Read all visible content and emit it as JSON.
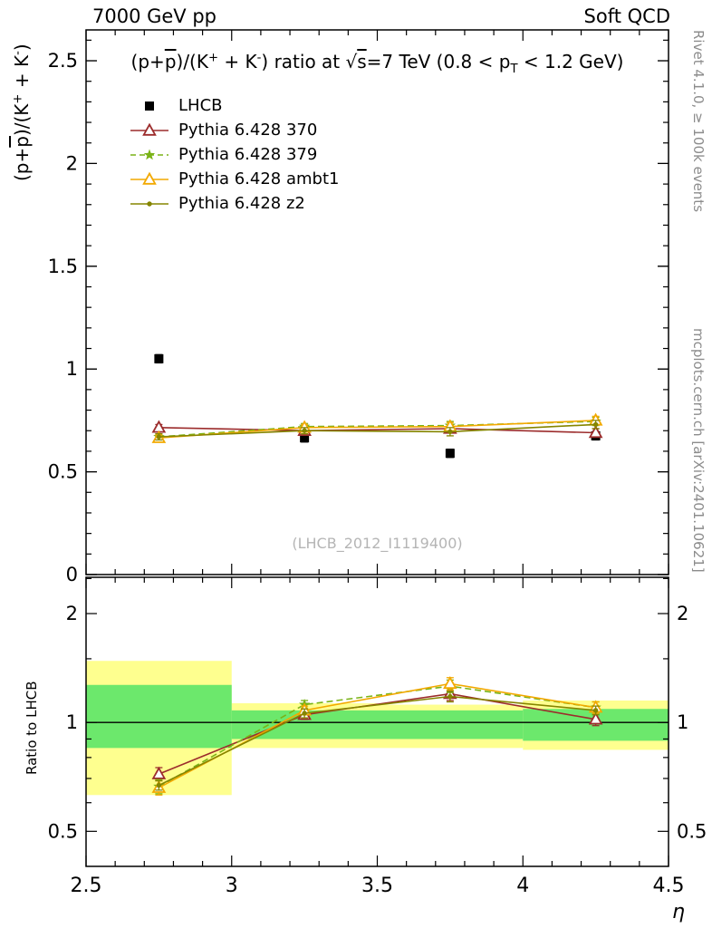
{
  "header": {
    "left": "7000 GeV pp",
    "right": "Soft QCD"
  },
  "title": {
    "s1": "(p+",
    "s2": "p",
    "s3": ")/(K",
    "s4": "+",
    "s5": " + K",
    "s6": "-",
    "s7": ") ratio at ",
    "s8": "√",
    "s9": "s",
    "s10": "=7 TeV (0.8 < p",
    "s11": "T",
    "s12": " < 1.2 GeV)"
  },
  "main_ylabel": {
    "s1": "(p+",
    "s2": "p",
    "s3": ")/(K",
    "s4": "+",
    "s5": " + K",
    "s6": "-",
    "s7": ")"
  },
  "ratio_ylabel": "Ratio to LHCB",
  "xlabel": "η",
  "watermark": "(LHCB_2012_I1119400)",
  "side_notes": {
    "top": "Rivet 4.1.0, ≥ 100k events",
    "bottom": "mcplots.cern.ch [arXiv:2401.10621]"
  },
  "colors": {
    "band_yellow": "#feff8f",
    "band_green": "#6ce86c",
    "frame": "#000000",
    "watermark": "#b5b5b5",
    "side_note": "#8c8c8c"
  },
  "chart_data": [
    {
      "type": "line",
      "panel": "main",
      "x": [
        2.75,
        3.25,
        3.75,
        4.25
      ],
      "xlim": [
        2.5,
        4.5
      ],
      "ylim": [
        0,
        2.65
      ],
      "xticks": [
        2.5,
        3,
        3.5,
        4,
        4.5
      ],
      "xminor_step": 0.1,
      "yticks": [
        0,
        0.5,
        1,
        1.5,
        2,
        2.5
      ],
      "ytick_labels": [
        "0",
        "0.5",
        "1",
        "1.5",
        "2",
        "2.5"
      ],
      "yminor_step": 0.1,
      "show_xtick_labels": false,
      "series": [
        {
          "name": "LHCB",
          "marker": "square",
          "color": "#000000",
          "line": "none",
          "values": [
            1.05,
            0.665,
            0.59,
            0.675
          ],
          "err": [
            0.02,
            0.02,
            0.02,
            0.02
          ]
        },
        {
          "name": "Pythia 6.428 370",
          "marker": "triangle-open",
          "color": "#9c2c2c",
          "line": "solid",
          "values": [
            0.715,
            0.7,
            0.71,
            0.69
          ],
          "err": [
            0.015,
            0.015,
            0.02,
            0.02
          ]
        },
        {
          "name": "Pythia 6.428 379",
          "marker": "star",
          "color": "#7ab317",
          "line": "dashed",
          "values": [
            0.67,
            0.72,
            0.725,
            0.745
          ],
          "err": [
            0.015,
            0.015,
            0.02,
            0.02
          ]
        },
        {
          "name": "Pythia 6.428 ambt1",
          "marker": "triangle-open",
          "color": "#f2a900",
          "line": "solid",
          "values": [
            0.665,
            0.715,
            0.72,
            0.75
          ],
          "err": [
            0.015,
            0.015,
            0.02,
            0.02
          ]
        },
        {
          "name": "Pythia 6.428 z2",
          "marker": "dot",
          "color": "#858500",
          "line": "solid",
          "values": [
            0.67,
            0.7,
            0.695,
            0.73
          ],
          "err": [
            0.015,
            0.015,
            0.02,
            0.02
          ]
        }
      ]
    },
    {
      "type": "line",
      "panel": "ratio",
      "x": [
        2.75,
        3.25,
        3.75,
        4.25
      ],
      "xlim": [
        2.5,
        4.5
      ],
      "yscale": "log",
      "ylim": [
        0.4,
        2.52
      ],
      "xticks": [
        2.5,
        3,
        3.5,
        4,
        4.5
      ],
      "xtick_labels": [
        "2.5",
        "3",
        "3.5",
        "4",
        "4.5"
      ],
      "xminor_step": 0.1,
      "yticks": [
        0.5,
        1,
        2
      ],
      "ytick_labels": [
        "0.5",
        "1",
        "2"
      ],
      "yminor": [
        0.6,
        0.7,
        0.8,
        0.9,
        1.5,
        2.5
      ],
      "show_xtick_labels": true,
      "label_both_sides": true,
      "refline": 1,
      "bands": [
        {
          "x0": 2.5,
          "x1": 3.0,
          "yellow": [
            0.63,
            1.48
          ],
          "green": [
            0.85,
            1.27
          ]
        },
        {
          "x0": 3.0,
          "x1": 3.5,
          "yellow": [
            0.85,
            1.13
          ],
          "green": [
            0.9,
            1.08
          ]
        },
        {
          "x0": 3.5,
          "x1": 4.0,
          "yellow": [
            0.85,
            1.12
          ],
          "green": [
            0.9,
            1.08
          ]
        },
        {
          "x0": 4.0,
          "x1": 4.5,
          "yellow": [
            0.84,
            1.15
          ],
          "green": [
            0.89,
            1.09
          ]
        }
      ],
      "series": [
        {
          "name": "Pythia 6.428 370",
          "marker": "triangle-open",
          "color": "#9c2c2c",
          "line": "solid",
          "values": [
            0.72,
            1.05,
            1.2,
            1.02
          ],
          "err": [
            0.03,
            0.03,
            0.05,
            0.04
          ]
        },
        {
          "name": "Pythia 6.428 379",
          "marker": "star",
          "color": "#7ab317",
          "line": "dashed",
          "values": [
            0.665,
            1.12,
            1.26,
            1.1
          ],
          "err": [
            0.03,
            0.03,
            0.05,
            0.04
          ]
        },
        {
          "name": "Pythia 6.428 ambt1",
          "marker": "triangle-open",
          "color": "#f2a900",
          "line": "solid",
          "values": [
            0.66,
            1.08,
            1.28,
            1.1
          ],
          "err": [
            0.03,
            0.03,
            0.05,
            0.04
          ]
        },
        {
          "name": "Pythia 6.428 z2",
          "marker": "dot",
          "color": "#858500",
          "line": "solid",
          "values": [
            0.67,
            1.06,
            1.18,
            1.08
          ],
          "err": [
            0.02,
            0.03,
            0.04,
            0.03
          ]
        }
      ]
    }
  ]
}
